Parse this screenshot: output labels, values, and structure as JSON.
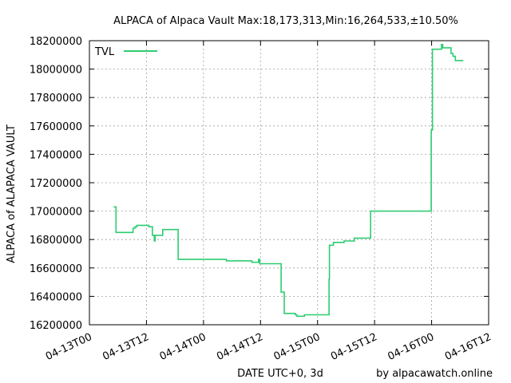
{
  "chart_data": {
    "type": "line",
    "title": "ALPACA of Alpaca Vault Max:18,173,313,Min:16,264,533,±10.50%",
    "xlabel": "DATE UTC+0, 3d",
    "ylabel": "ALPACA of ALAPACA VAULT",
    "credit": "by alpacawatch.online",
    "legend": {
      "position": "top-left",
      "label": "TVL",
      "color": "#2ecc71"
    },
    "grid": true,
    "ylim": [
      16200000,
      18200000
    ],
    "xlim": [
      "2022-04-13T00:00",
      "2022-04-16T12:00"
    ],
    "y_ticks": [
      16200000,
      16400000,
      16600000,
      16800000,
      17000000,
      17200000,
      17400000,
      17600000,
      17800000,
      18000000,
      18200000
    ],
    "y_tick_labels": [
      "16200000",
      "16400000",
      "16600000",
      "16800000",
      "17000000",
      "17200000",
      "17400000",
      "17600000",
      "17800000",
      "18000000",
      "18200000"
    ],
    "x_ticks": [
      "2022-04-13T00:00",
      "2022-04-13T12:00",
      "2022-04-14T00:00",
      "2022-04-14T12:00",
      "2022-04-15T00:00",
      "2022-04-15T12:00",
      "2022-04-16T00:00",
      "2022-04-16T12:00"
    ],
    "x_tick_labels": [
      "04-13T00",
      "04-13T12",
      "04-14T00",
      "04-14T12",
      "04-15T00",
      "04-15T12",
      "04-16T00",
      "04-16T12"
    ],
    "series": [
      {
        "name": "TVL",
        "color": "#2ecc71",
        "step": true,
        "points": [
          [
            "2022-04-13T05:06",
            17030000
          ],
          [
            "2022-04-13T05:36",
            17020000
          ],
          [
            "2022-04-13T05:36",
            16850000
          ],
          [
            "2022-04-13T08:45",
            16850000
          ],
          [
            "2022-04-13T09:10",
            16880000
          ],
          [
            "2022-04-13T09:35",
            16890000
          ],
          [
            "2022-04-13T10:00",
            16900000
          ],
          [
            "2022-04-13T12:30",
            16890000
          ],
          [
            "2022-04-13T13:15",
            16890000
          ],
          [
            "2022-04-13T13:15",
            16830000
          ],
          [
            "2022-04-13T13:40",
            16790000
          ],
          [
            "2022-04-13T13:50",
            16830000
          ],
          [
            "2022-04-13T15:25",
            16830000
          ],
          [
            "2022-04-13T15:25",
            16870000
          ],
          [
            "2022-04-13T18:25",
            16870000
          ],
          [
            "2022-04-13T18:40",
            16780000
          ],
          [
            "2022-04-13T18:40",
            16660000
          ],
          [
            "2022-04-13T20:30",
            16660000
          ],
          [
            "2022-04-13T21:40",
            16660000
          ],
          [
            "2022-04-13T22:35",
            16660000
          ],
          [
            "2022-04-14T00:25",
            16660000
          ],
          [
            "2022-04-14T04:50",
            16650000
          ],
          [
            "2022-04-14T09:10",
            16650000
          ],
          [
            "2022-04-14T10:10",
            16640000
          ],
          [
            "2022-04-14T11:35",
            16660000
          ],
          [
            "2022-04-14T11:50",
            16630000
          ],
          [
            "2022-04-14T16:00",
            16630000
          ],
          [
            "2022-04-14T16:20",
            16530000
          ],
          [
            "2022-04-14T16:20",
            16430000
          ],
          [
            "2022-04-14T16:50",
            16430000
          ],
          [
            "2022-04-14T17:00",
            16360000
          ],
          [
            "2022-04-14T17:00",
            16280000
          ],
          [
            "2022-04-14T18:50",
            16280000
          ],
          [
            "2022-04-14T19:20",
            16270000
          ],
          [
            "2022-04-14T19:40",
            16260000
          ],
          [
            "2022-04-14T21:15",
            16270000
          ],
          [
            "2022-04-15T02:25",
            16270000
          ],
          [
            "2022-04-15T02:25",
            16520000
          ],
          [
            "2022-04-15T02:30",
            16520000
          ],
          [
            "2022-04-15T02:30",
            16760000
          ],
          [
            "2022-04-15T03:20",
            16780000
          ],
          [
            "2022-04-15T05:35",
            16790000
          ],
          [
            "2022-04-15T07:45",
            16810000
          ],
          [
            "2022-04-15T11:10",
            16810000
          ],
          [
            "2022-04-15T11:10",
            16890000
          ],
          [
            "2022-04-15T11:10",
            17000000
          ],
          [
            "2022-04-15T14:40",
            17000000
          ],
          [
            "2022-04-15T19:20",
            17000000
          ],
          [
            "2022-04-15T23:45",
            17000000
          ],
          [
            "2022-04-15T23:55",
            17570000
          ],
          [
            "2022-04-16T00:10",
            18140000
          ],
          [
            "2022-04-16T01:50",
            18140000
          ],
          [
            "2022-04-16T02:05",
            18173313
          ],
          [
            "2022-04-16T02:20",
            18150000
          ],
          [
            "2022-04-16T03:55",
            18150000
          ],
          [
            "2022-04-16T04:05",
            18110000
          ],
          [
            "2022-04-16T04:30",
            18090000
          ],
          [
            "2022-04-16T05:00",
            18060000
          ],
          [
            "2022-04-16T06:40",
            18060000
          ]
        ]
      }
    ]
  }
}
